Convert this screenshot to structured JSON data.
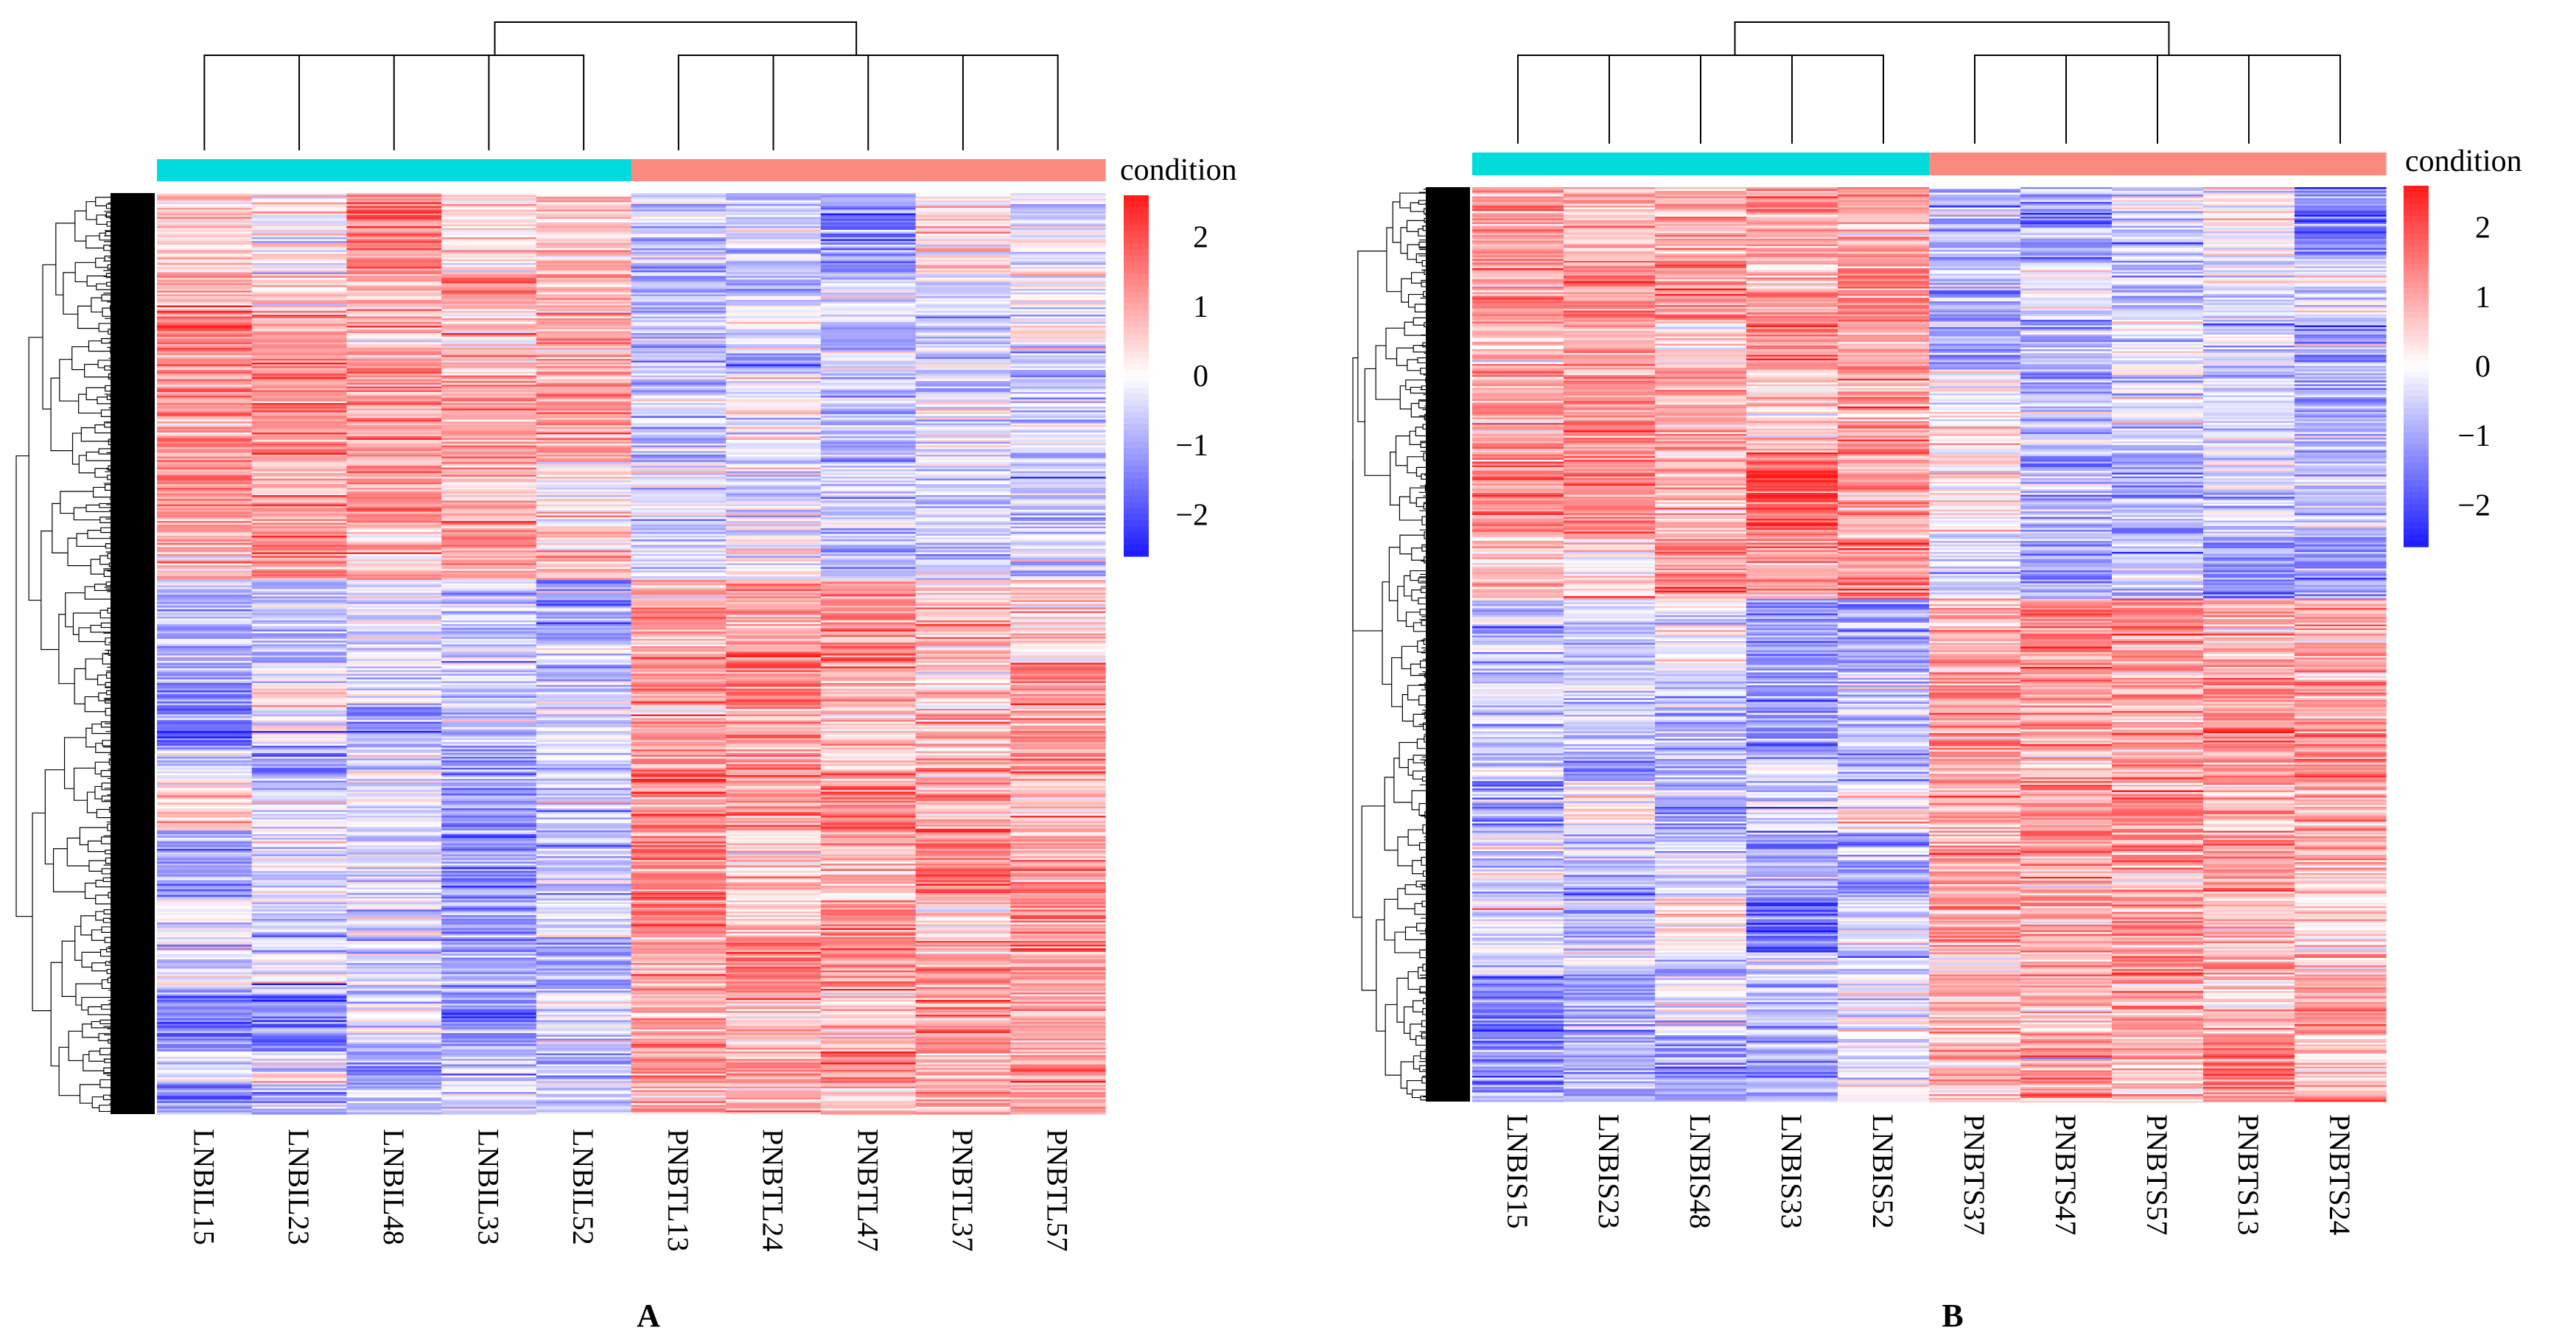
{
  "figure": {
    "panels": [
      "A",
      "B"
    ]
  },
  "chart_data": [
    {
      "type": "heatmap",
      "panel_label": "A",
      "title": "",
      "xlabel": "",
      "ylabel": "",
      "samples": [
        "LNBIL15",
        "LNBIL23",
        "LNBIL48",
        "LNBIL33",
        "LNBIL52",
        "PNBTL13",
        "PNBTL24",
        "PNBTL47",
        "PNBTL37",
        "PNBTL57"
      ],
      "conditions": [
        "group1",
        "group1",
        "group1",
        "group1",
        "group1",
        "group2",
        "group2",
        "group2",
        "group2",
        "group2"
      ],
      "annotation_label": "condition",
      "condition_colors": {
        "group1": "#00dcdc",
        "group2": "#fa8a80"
      },
      "color_scale": {
        "min": -2.6,
        "max": 2.6,
        "low": "#1a1aff",
        "mid": "#ffffff",
        "high": "#ff1a1a"
      },
      "legend_ticks": [
        2,
        1,
        0,
        -1,
        -2
      ],
      "legend_tick_labels": [
        "2",
        "1",
        "0",
        "−1",
        "−2"
      ],
      "row_blocks": [
        {
          "fraction": 0.42,
          "means": [
            1.1,
            1.0,
            1.1,
            1.0,
            0.9,
            -0.5,
            -0.5,
            -0.7,
            -0.5,
            -0.4
          ]
        },
        {
          "fraction": 0.58,
          "means": [
            -0.7,
            -0.7,
            -0.6,
            -0.7,
            -0.7,
            1.0,
            1.0,
            0.9,
            1.0,
            1.0
          ]
        }
      ],
      "sample_dendrogram": [
        [
          0,
          1
        ],
        [
          10,
          2
        ],
        [
          11,
          3
        ],
        [
          12,
          4
        ],
        [
          5,
          6
        ],
        [
          7,
          8
        ],
        [
          15,
          9
        ],
        [
          14,
          16
        ],
        [
          13,
          17
        ]
      ],
      "merge_heights": [
        0.3,
        0.3,
        0.3,
        0.3,
        0.3,
        0.3,
        0.3,
        0.3,
        0.6
      ]
    },
    {
      "type": "heatmap",
      "panel_label": "B",
      "title": "",
      "xlabel": "",
      "ylabel": "",
      "samples": [
        "LNBIS15",
        "LNBIS23",
        "LNBIS48",
        "LNBIS33",
        "LNBIS52",
        "PNBTS37",
        "PNBTS47",
        "PNBTS57",
        "PNBTS13",
        "PNBTS24"
      ],
      "conditions": [
        "group1",
        "group1",
        "group1",
        "group1",
        "group1",
        "group2",
        "group2",
        "group2",
        "group2",
        "group2"
      ],
      "annotation_label": "condition",
      "condition_colors": {
        "group1": "#00dcdc",
        "group2": "#fa8a80"
      },
      "color_scale": {
        "min": -2.6,
        "max": 2.6,
        "low": "#1a1aff",
        "mid": "#ffffff",
        "high": "#ff1a1a"
      },
      "legend_ticks": [
        2,
        1,
        0,
        -1,
        -2
      ],
      "legend_tick_labels": [
        "2",
        "1",
        "0",
        "−1",
        "−2"
      ],
      "row_blocks": [
        {
          "fraction": 0.45,
          "means": [
            1.0,
            1.1,
            1.0,
            1.0,
            1.0,
            -0.4,
            -0.6,
            -0.5,
            -0.5,
            -0.6
          ]
        },
        {
          "fraction": 0.55,
          "means": [
            -0.7,
            -0.7,
            -0.6,
            -0.7,
            -0.6,
            1.0,
            0.9,
            1.0,
            1.0,
            0.9
          ]
        }
      ],
      "sample_dendrogram": [
        [
          0,
          1
        ],
        [
          10,
          2
        ],
        [
          3,
          4
        ],
        [
          11,
          12
        ],
        [
          6,
          7
        ],
        [
          5,
          14
        ],
        [
          8,
          9
        ],
        [
          15,
          16
        ],
        [
          13,
          17
        ]
      ],
      "merge_heights": [
        0.3,
        0.3,
        0.3,
        0.3,
        0.3,
        0.3,
        0.3,
        0.3,
        0.6
      ]
    }
  ]
}
